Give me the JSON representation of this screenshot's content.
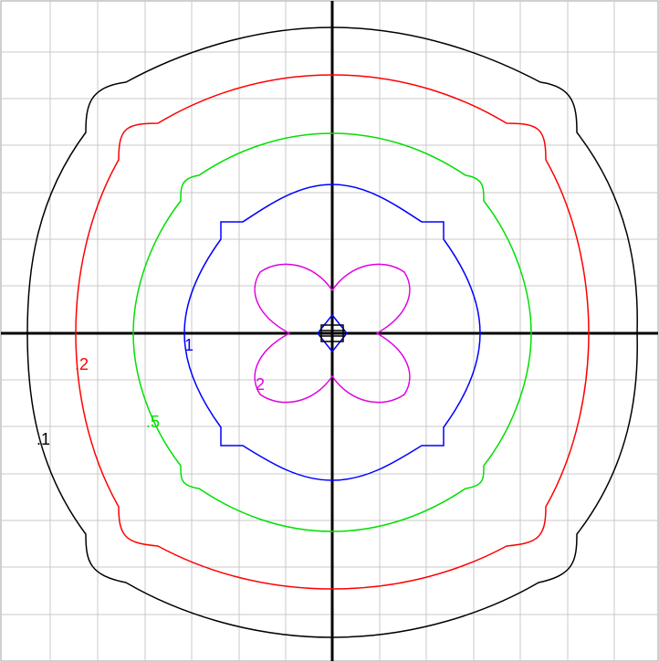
{
  "colors": {
    "background": "#ffffff",
    "grid": "#c8c8c8",
    "axis": "#000000",
    "contour_black": "#000000",
    "contour_red": "#ff0000",
    "contour_green": "#00e000",
    "contour_blue": "#0000ff",
    "contour_magenta": "#e000e0"
  },
  "labels": {
    "black": ".1",
    "red": ".2",
    "green": ".5",
    "blue": "1",
    "magenta": "2"
  }
}
